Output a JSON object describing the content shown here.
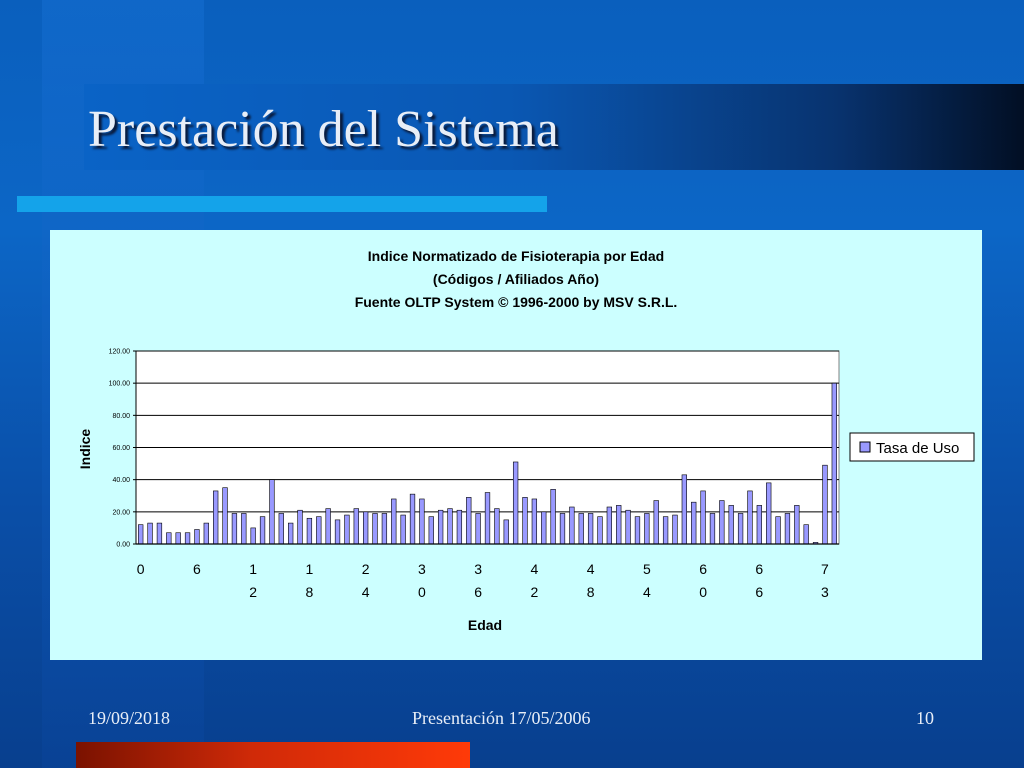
{
  "slide": {
    "title": "Prestación del Sistema",
    "footer_date": "19/09/2018",
    "footer_center": "Presentación 17/05/2006",
    "page_number": "10"
  },
  "colors": {
    "background": "#0a5fbd",
    "chart_background": "#ccffff",
    "bar_fill": "#9999ff",
    "accent_cyan": "#14a3ea",
    "accent_red": "#ff3a08"
  },
  "chart_data": {
    "type": "bar",
    "title": "Indice Normatizado de Fisioterapia por Edad",
    "subtitle_lines": [
      "(Códigos / Afiliados Año)",
      "Fuente OLTP System © 1996-2000 by MSV S.R.L."
    ],
    "xlabel": "Edad",
    "ylabel": "Indice",
    "ylim": [
      0,
      120
    ],
    "y_ticks": [
      "0.00",
      "20.00",
      "40.00",
      "60.00",
      "80.00",
      "100.00",
      "120.00"
    ],
    "x_tick_labels": [
      {
        "index": 0,
        "line1": "0",
        "line2": ""
      },
      {
        "index": 6,
        "line1": "6",
        "line2": ""
      },
      {
        "index": 12,
        "line1": "1",
        "line2": "2"
      },
      {
        "index": 18,
        "line1": "1",
        "line2": "8"
      },
      {
        "index": 24,
        "line1": "2",
        "line2": "4"
      },
      {
        "index": 30,
        "line1": "3",
        "line2": "0"
      },
      {
        "index": 36,
        "line1": "3",
        "line2": "6"
      },
      {
        "index": 42,
        "line1": "4",
        "line2": "2"
      },
      {
        "index": 48,
        "line1": "4",
        "line2": "8"
      },
      {
        "index": 54,
        "line1": "5",
        "line2": "4"
      },
      {
        "index": 60,
        "line1": "6",
        "line2": "0"
      },
      {
        "index": 66,
        "line1": "6",
        "line2": "6"
      },
      {
        "index": 73,
        "line1": "7",
        "line2": "3"
      }
    ],
    "grid": true,
    "legend_position": "right",
    "series": [
      {
        "name": "Tasa de Uso",
        "values": [
          12,
          13,
          13,
          7,
          7,
          7,
          9,
          13,
          33,
          35,
          19,
          19,
          10,
          17,
          40,
          19,
          13,
          21,
          16,
          17,
          22,
          15,
          18,
          22,
          20,
          19,
          19,
          28,
          18,
          31,
          28,
          17,
          21,
          22,
          21,
          29,
          19,
          32,
          22,
          15,
          51,
          29,
          28,
          20,
          34,
          19,
          23,
          19,
          19,
          17,
          23,
          24,
          21,
          17,
          19,
          27,
          17,
          18,
          43,
          26,
          33,
          19,
          27,
          24,
          19,
          33,
          24,
          38,
          17,
          19,
          24,
          12,
          1,
          49,
          100
        ]
      }
    ]
  }
}
